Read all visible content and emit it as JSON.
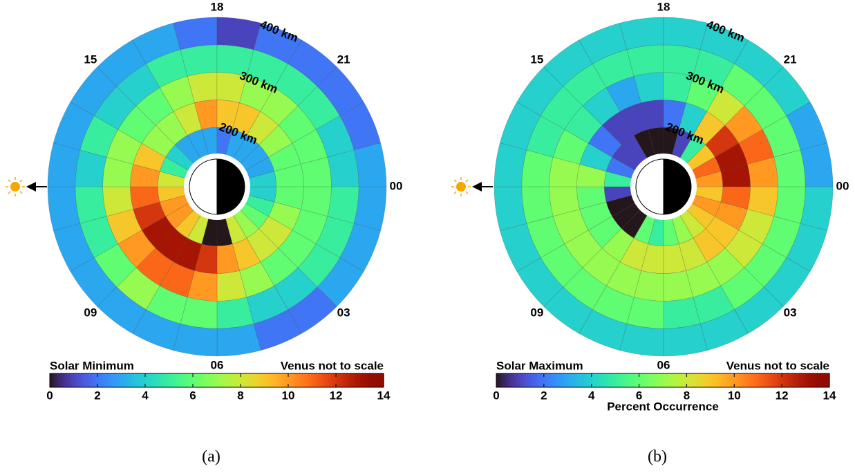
{
  "chart_data": [
    {
      "type": "polar-heatmap",
      "title": "Solar Minimum",
      "annotation": "Venus not to scale",
      "caption": "(a)",
      "colormap": "turbo",
      "theta_bins": [
        0,
        1,
        2,
        3,
        4,
        5,
        6,
        7,
        8,
        9,
        10,
        11,
        12,
        13,
        14,
        15,
        16,
        17,
        18,
        19,
        20,
        21,
        22,
        23,
        24
      ],
      "r_bins": [
        150,
        200,
        250,
        300,
        350,
        400
      ],
      "rlim": [
        150,
        400
      ],
      "rticks": [
        {
          "value": 200,
          "label": "200 km"
        },
        {
          "value": 300,
          "label": "300 km"
        },
        {
          "value": 400,
          "label": "400 km"
        }
      ],
      "thetaticks": [
        {
          "value": 0,
          "label": "00"
        },
        {
          "value": 3,
          "label": "03"
        },
        {
          "value": 6,
          "label": "06"
        },
        {
          "value": 9,
          "label": "09"
        },
        15,
        18,
        21
      ],
      "colorbar": {
        "lim": [
          0,
          14
        ],
        "ticks": [
          0,
          2,
          4,
          6,
          8,
          10,
          12,
          14
        ]
      },
      "values": [
        [
          4,
          6,
          6,
          5,
          3
        ],
        [
          5,
          7,
          6,
          5,
          3
        ],
        [
          6,
          8,
          6,
          5,
          3
        ],
        [
          7,
          8,
          6,
          4,
          2
        ],
        [
          8,
          9,
          7,
          4,
          2
        ],
        [
          0,
          10,
          8,
          5,
          3
        ],
        [
          0,
          12,
          10,
          6,
          3
        ],
        [
          8,
          13,
          11,
          6,
          3
        ],
        [
          9,
          13,
          11,
          7,
          3
        ],
        [
          10,
          13,
          10,
          6,
          3
        ],
        [
          10,
          12,
          9,
          5,
          3
        ],
        [
          9,
          11,
          8,
          5,
          3
        ],
        [
          8,
          10,
          7,
          4,
          3
        ],
        [
          5,
          9,
          7,
          5,
          3
        ],
        [
          4,
          7,
          6,
          4,
          3
        ],
        [
          3,
          7,
          6,
          4,
          3
        ],
        [
          3,
          8,
          7,
          5,
          3
        ],
        [
          3,
          10,
          8,
          5,
          2
        ],
        [
          2,
          9,
          8,
          5,
          1
        ],
        [
          3,
          9,
          7,
          5,
          2
        ],
        [
          3,
          8,
          7,
          5,
          2
        ],
        [
          3,
          7,
          6,
          5,
          2
        ],
        [
          3,
          6,
          6,
          4,
          2
        ],
        [
          4,
          6,
          6,
          4,
          3
        ]
      ]
    },
    {
      "type": "polar-heatmap",
      "title": "Solar Maximum",
      "annotation": "Venus not to scale",
      "caption": "(b)",
      "colormap": "turbo",
      "theta_bins": [
        0,
        1,
        2,
        3,
        4,
        5,
        6,
        7,
        8,
        9,
        10,
        11,
        12,
        13,
        14,
        15,
        16,
        17,
        18,
        19,
        20,
        21,
        22,
        23,
        24
      ],
      "r_bins": [
        150,
        200,
        250,
        300,
        350,
        400
      ],
      "rlim": [
        150,
        400
      ],
      "rticks": [
        {
          "value": 200,
          "label": "200 km"
        },
        {
          "value": 300,
          "label": "300 km"
        },
        {
          "value": 400,
          "label": "400 km"
        }
      ],
      "thetaticks": [
        {
          "value": 0,
          "label": "00"
        },
        {
          "value": 3,
          "label": "03"
        },
        {
          "value": 6,
          "label": "06"
        },
        {
          "value": 9,
          "label": "09"
        },
        15,
        18,
        21
      ],
      "colorbar": {
        "lim": [
          0,
          14
        ],
        "ticks": [
          0,
          2,
          4,
          6,
          8,
          10,
          12,
          14
        ],
        "label": "Percent Occurrence"
      },
      "values": [
        [
          9,
          11,
          9,
          6,
          4
        ],
        [
          10,
          10,
          8,
          6,
          4
        ],
        [
          9,
          9,
          8,
          6,
          4
        ],
        [
          8,
          9,
          7,
          6,
          4
        ],
        [
          7,
          8,
          7,
          5,
          4
        ],
        [
          6,
          8,
          7,
          5,
          4
        ],
        [
          5,
          8,
          7,
          6,
          4
        ],
        [
          6,
          8,
          7,
          6,
          4
        ],
        [
          0,
          7,
          7,
          6,
          4
        ],
        [
          0,
          6,
          7,
          6,
          4
        ],
        [
          0,
          6,
          7,
          6,
          4
        ],
        [
          1,
          6,
          7,
          6,
          4
        ],
        [
          5,
          7,
          7,
          6,
          4
        ],
        [
          2,
          4,
          6,
          5,
          4
        ],
        [
          1,
          2,
          5,
          5,
          4
        ],
        [
          1,
          1,
          4,
          5,
          4
        ],
        [
          0,
          1,
          3,
          5,
          4
        ],
        [
          0,
          1,
          4,
          5,
          4
        ],
        [
          0,
          2,
          5,
          5,
          4
        ],
        [
          1,
          4,
          6,
          5,
          4
        ],
        [
          5,
          9,
          8,
          6,
          4
        ],
        [
          9,
          12,
          10,
          6,
          4
        ],
        [
          11,
          13,
          11,
          6,
          3
        ],
        [
          10,
          13,
          10,
          6,
          3
        ]
      ]
    }
  ]
}
